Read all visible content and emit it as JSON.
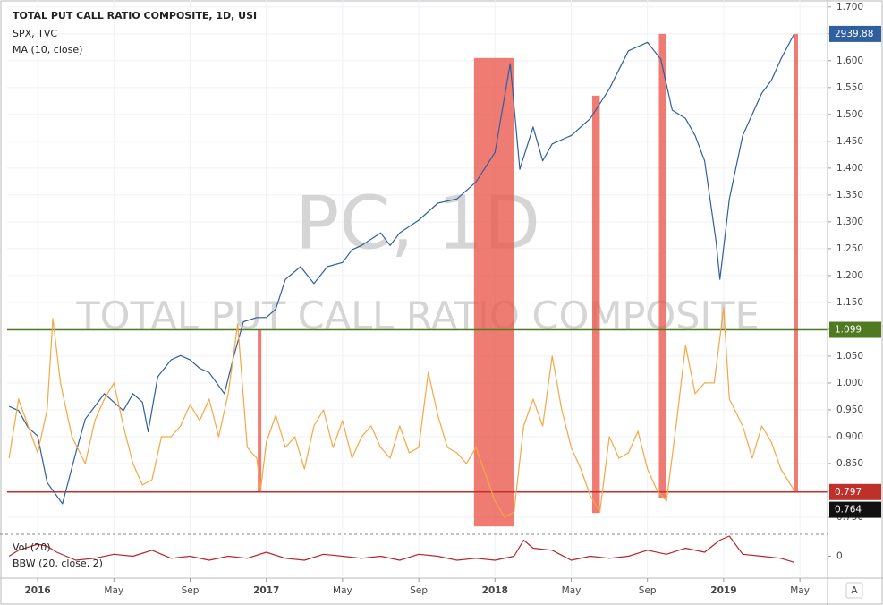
{
  "chart_data": {
    "type": "line",
    "title": "TOTAL PUT CALL RATIO COMPOSITE, 1D, USI",
    "watermark": [
      "PC, 1D",
      "TOTAL PUT CALL RATIO COMPOSITE"
    ],
    "xlim": [
      -1.6,
      41.45
    ],
    "xticks": [
      {
        "value": 0,
        "label": "2016"
      },
      {
        "value": 4,
        "label": "May"
      },
      {
        "value": 8,
        "label": "Sep"
      },
      {
        "value": 12,
        "label": "2017"
      },
      {
        "value": 16,
        "label": "May"
      },
      {
        "value": 20,
        "label": "Sep"
      },
      {
        "value": 24,
        "label": "2018"
      },
      {
        "value": 28,
        "label": "May"
      },
      {
        "value": 32,
        "label": "Sep"
      },
      {
        "value": 36,
        "label": "2019"
      },
      {
        "value": 40,
        "label": "May"
      }
    ],
    "ylim": [
      0.72,
      1.713
    ],
    "yticks": [
      {
        "value": 0.75,
        "label": "0.750"
      },
      {
        "value": 0.8,
        "label": "0.800"
      },
      {
        "value": 0.85,
        "label": "0.850"
      },
      {
        "value": 0.9,
        "label": "0.900"
      },
      {
        "value": 0.95,
        "label": "0.950"
      },
      {
        "value": 1.0,
        "label": "1.000"
      },
      {
        "value": 1.05,
        "label": "1.050"
      },
      {
        "value": 1.1,
        "label": "1.100"
      },
      {
        "value": 1.15,
        "label": "1.150"
      },
      {
        "value": 1.2,
        "label": "1.200"
      },
      {
        "value": 1.25,
        "label": "1.250"
      },
      {
        "value": 1.3,
        "label": "1.300"
      },
      {
        "value": 1.35,
        "label": "1.350"
      },
      {
        "value": 1.4,
        "label": "1.400"
      },
      {
        "value": 1.45,
        "label": "1.450"
      },
      {
        "value": 1.5,
        "label": "1.500"
      },
      {
        "value": 1.55,
        "label": "1.550"
      },
      {
        "value": 1.6,
        "label": "1.600"
      },
      {
        "value": 1.65,
        "label": "1.650"
      },
      {
        "value": 1.7,
        "label": "1.700"
      }
    ],
    "y2lim": [
      1760,
      3020
    ],
    "grid": true,
    "series": [
      {
        "name": "SPX, TVC",
        "color": "#2f5f9e",
        "axis": "y2",
        "x": [
          -1.5,
          -1,
          -0.5,
          0,
          0.5,
          1.3,
          2,
          2.5,
          3,
          3.5,
          4,
          4.5,
          5,
          5.5,
          5.8,
          6.3,
          7,
          7.5,
          8,
          8.5,
          9,
          9.8,
          10.3,
          10.8,
          11.5,
          12,
          12.5,
          13,
          13.8,
          14.5,
          15.2,
          16,
          16.5,
          17,
          18,
          18.5,
          19,
          20,
          21,
          22,
          23,
          24,
          24.8,
          25.3,
          26,
          26.5,
          27,
          28,
          29,
          30,
          31,
          32,
          32.7,
          33.3,
          34,
          34.5,
          35,
          35.6,
          35.8,
          36.3,
          37,
          38,
          38.5,
          39,
          39.7
        ],
        "values": [
          2060,
          2050,
          2010,
          1990,
          1880,
          1830,
          1950,
          2030,
          2060,
          2090,
          2070,
          2050,
          2090,
          2070,
          2000,
          2130,
          2170,
          2180,
          2170,
          2150,
          2140,
          2090,
          2180,
          2260,
          2270,
          2270,
          2290,
          2360,
          2390,
          2350,
          2390,
          2400,
          2430,
          2440,
          2470,
          2440,
          2470,
          2500,
          2540,
          2550,
          2590,
          2660,
          2870,
          2620,
          2720,
          2640,
          2680,
          2700,
          2740,
          2810,
          2900,
          2920,
          2880,
          2760,
          2740,
          2700,
          2640,
          2450,
          2360,
          2550,
          2700,
          2800,
          2830,
          2880,
          2939.88
        ]
      },
      {
        "name": "MA (10, close)",
        "color": "#f5a742",
        "x": [
          -1.5,
          -1,
          -0.5,
          0,
          0.5,
          0.8,
          1.2,
          1.8,
          2.5,
          3,
          3.5,
          4,
          4.5,
          5,
          5.5,
          6,
          6.5,
          7,
          7.5,
          8,
          8.5,
          9,
          9.5,
          10,
          10.5,
          11,
          11.5,
          11.7,
          12,
          12.5,
          13,
          13.5,
          14,
          14.5,
          15,
          15.5,
          16,
          16.5,
          17,
          17.5,
          18,
          18.5,
          19,
          19.5,
          20,
          20.5,
          21,
          21.5,
          22,
          22.5,
          23,
          23.5,
          24,
          24.5,
          25,
          25.5,
          26,
          26.5,
          27,
          27.5,
          28,
          28.5,
          29,
          29.5,
          30,
          30.5,
          31,
          31.5,
          32,
          32.5,
          33,
          33.5,
          34,
          34.5,
          35,
          35.5,
          36,
          36.3,
          37,
          37.5,
          38,
          38.5,
          39,
          39.7
        ],
        "values": [
          0.86,
          0.97,
          0.92,
          0.87,
          0.95,
          1.12,
          1.0,
          0.9,
          0.85,
          0.93,
          0.97,
          1.0,
          0.92,
          0.85,
          0.81,
          0.82,
          0.9,
          0.9,
          0.92,
          0.96,
          0.93,
          0.97,
          0.9,
          0.98,
          1.11,
          0.88,
          0.86,
          0.8,
          0.89,
          0.94,
          0.88,
          0.9,
          0.84,
          0.92,
          0.95,
          0.88,
          0.93,
          0.86,
          0.9,
          0.92,
          0.88,
          0.86,
          0.92,
          0.87,
          0.88,
          1.02,
          0.94,
          0.88,
          0.87,
          0.85,
          0.88,
          0.83,
          0.78,
          0.75,
          0.76,
          0.92,
          0.97,
          0.92,
          1.05,
          0.95,
          0.88,
          0.84,
          0.79,
          0.76,
          0.9,
          0.86,
          0.87,
          0.91,
          0.84,
          0.8,
          0.78,
          0.92,
          1.07,
          0.98,
          1.0,
          1.0,
          1.14,
          0.97,
          0.92,
          0.86,
          0.92,
          0.89,
          0.84,
          0.8
        ]
      }
    ],
    "hlines": [
      {
        "value": 1.099,
        "color": "#4f7a22"
      },
      {
        "value": 0.797,
        "color": "#c0302a"
      }
    ],
    "last_price": {
      "value": 2939.88,
      "color": "#2f5f9e"
    },
    "marker_label": {
      "value": 0.764,
      "color": "#111111"
    },
    "highlights": {
      "color": "#ea5b50",
      "ranges": [
        {
          "x": [
            22.9,
            25.0
          ],
          "y": [
            0.733,
            1.605
          ]
        },
        {
          "x": [
            11.55,
            11.74
          ],
          "y": [
            0.797,
            1.099
          ]
        },
        {
          "x": [
            29.1,
            29.5
          ],
          "y": [
            0.758,
            1.535
          ]
        },
        {
          "x": [
            32.6,
            33.0
          ],
          "y": [
            0.785,
            1.65
          ]
        },
        {
          "x": [
            39.7,
            39.9
          ],
          "y": [
            0.797,
            1.65
          ]
        }
      ]
    },
    "lower_pane": {
      "labels": [
        "Vol (20)",
        "BBW (20, close, 2)"
      ],
      "color": "#b5262a",
      "ylim": [
        -0.1,
        0.1
      ],
      "yticks": [
        0
      ],
      "x": [
        -1.5,
        -1,
        0,
        0.5,
        1,
        2,
        3,
        4,
        5,
        6,
        7,
        8,
        9,
        10,
        11,
        12,
        13,
        14,
        15,
        16,
        17,
        18,
        19,
        20,
        21,
        22,
        23,
        24,
        25,
        25.5,
        26,
        27,
        28,
        29,
        30,
        31,
        32,
        33,
        34,
        35,
        35.8,
        36.3,
        37,
        38,
        39,
        39.7
      ],
      "values": [
        0.0,
        0.03,
        0.06,
        0.05,
        0.02,
        -0.02,
        -0.01,
        0.01,
        0.0,
        0.03,
        -0.01,
        0.0,
        -0.02,
        0.0,
        -0.01,
        0.02,
        -0.01,
        -0.02,
        0.01,
        0.0,
        -0.01,
        0.0,
        -0.02,
        0.01,
        0.0,
        -0.02,
        -0.01,
        -0.02,
        0.0,
        0.08,
        0.04,
        0.03,
        -0.02,
        0.0,
        -0.01,
        0.0,
        0.03,
        0.01,
        0.04,
        0.02,
        0.08,
        0.1,
        0.01,
        0.0,
        -0.01,
        -0.03
      ]
    },
    "button": "A"
  }
}
